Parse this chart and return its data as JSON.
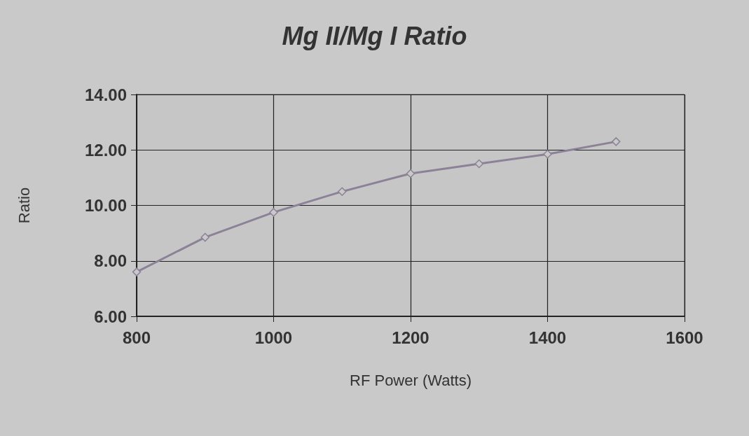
{
  "chart_data": {
    "type": "line",
    "title": "Mg II/Mg I Ratio",
    "xlabel": "RF Power (Watts)",
    "ylabel": "Ratio",
    "x": [
      800,
      900,
      1000,
      1100,
      1200,
      1300,
      1400,
      1500
    ],
    "series": [
      {
        "color": "#8c8298",
        "values": [
          7.6,
          8.85,
          9.75,
          10.5,
          11.15,
          11.5,
          11.85,
          12.3
        ]
      }
    ],
    "xlim": [
      800,
      1600
    ],
    "xticks": [
      800,
      1000,
      1200,
      1400,
      1600
    ],
    "ylim": [
      6,
      14
    ],
    "yticks": [
      {
        "value": 6,
        "label": "6.00"
      },
      {
        "value": 8,
        "label": "8.00"
      },
      {
        "value": 10,
        "label": "10.00"
      },
      {
        "value": 12,
        "label": "12.00"
      },
      {
        "value": 14,
        "label": "14.00"
      }
    ],
    "grid": true,
    "marker": "diamond",
    "line_style": "solid"
  }
}
